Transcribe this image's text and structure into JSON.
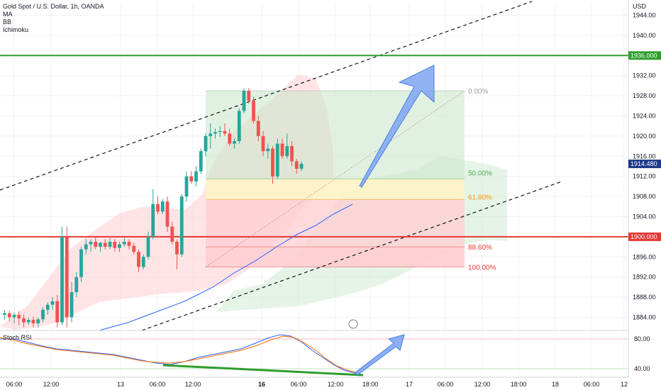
{
  "header": {
    "symbol": "Gold Spot / U.S. Dollar, 1h, OANDA",
    "indicators": [
      "MA",
      "BB",
      "Ichimoku"
    ],
    "currency": "USD"
  },
  "rsi_panel": {
    "label": "Stoch RSI",
    "levels": [
      "80.00",
      "40.00"
    ]
  },
  "time_axis": {
    "labels": [
      {
        "text": "06:00",
        "bold": false
      },
      {
        "text": "12:00",
        "bold": false
      },
      {
        "text": "13",
        "bold": false
      },
      {
        "text": "06:00",
        "bold": false
      },
      {
        "text": "12:00",
        "bold": false
      },
      {
        "text": "16",
        "bold": true
      },
      {
        "text": "06:00",
        "bold": false
      },
      {
        "text": "12:00",
        "bold": false
      },
      {
        "text": "18:00",
        "bold": false
      },
      {
        "text": "17",
        "bold": false
      },
      {
        "text": "06:00",
        "bold": false
      },
      {
        "text": "12:00",
        "bold": false
      },
      {
        "text": "18:00",
        "bold": false
      },
      {
        "text": "18",
        "bold": false
      },
      {
        "text": "06:00",
        "bold": false
      },
      {
        "text": "12",
        "bold": false
      }
    ]
  },
  "price_tags": [
    {
      "text": "1936.000",
      "color": "#2e9e2e",
      "price": 1936.0
    },
    {
      "text": "1914.480",
      "color": "#1e3a8a",
      "price": 1914.48
    },
    {
      "text": "1900.000",
      "color": "#e53935",
      "price": 1900.0
    }
  ],
  "fib_labels": [
    {
      "text": "0.00%",
      "color": "#9e9e9e"
    },
    {
      "text": "50.00%",
      "color": "#4caf50"
    },
    {
      "text": "61.80%",
      "color": "#ff9800"
    },
    {
      "text": "88.60%",
      "color": "#e53935"
    },
    {
      "text": "100.00%",
      "color": "#e53935"
    }
  ],
  "colors": {
    "up": "#26a69a",
    "down": "#ef5350",
    "grid": "#f0f3fa",
    "support": "#e53935",
    "resistance": "#2e9e2e",
    "ma": "#2962ff"
  },
  "chart_data": {
    "type": "candlestick",
    "title": "Gold Spot / U.S. Dollar, 1h, OANDA",
    "y_unit": "USD",
    "ylim": [
      1880,
      1948
    ],
    "yticks": [
      1884,
      1888,
      1892,
      1896,
      1900,
      1904,
      1908,
      1912,
      1916,
      1920,
      1924,
      1928,
      1932,
      1940,
      1944
    ],
    "horizontal_levels": [
      {
        "price": 1936.0,
        "color": "#2e9e2e"
      },
      {
        "price": 1900.0,
        "color": "#e53935"
      }
    ],
    "fib_retracement": {
      "high": 1929.0,
      "low": 1894.0,
      "levels": [
        {
          "ratio": 0.0,
          "price": 1929.0
        },
        {
          "ratio": 0.5,
          "price": 1911.5
        },
        {
          "ratio": 0.618,
          "price": 1907.4
        },
        {
          "ratio": 0.886,
          "price": 1898.0
        },
        {
          "ratio": 1.0,
          "price": 1894.0
        }
      ]
    },
    "candles": [
      {
        "o": 1884.5,
        "h": 1885.5,
        "l": 1883.5,
        "c": 1884.8
      },
      {
        "o": 1884.8,
        "h": 1885.3,
        "l": 1883.2,
        "c": 1884.0
      },
      {
        "o": 1884.0,
        "h": 1885.0,
        "l": 1882.8,
        "c": 1884.5
      },
      {
        "o": 1884.5,
        "h": 1885.2,
        "l": 1882.5,
        "c": 1883.8
      },
      {
        "o": 1883.8,
        "h": 1884.6,
        "l": 1882.0,
        "c": 1883.0
      },
      {
        "o": 1883.0,
        "h": 1884.0,
        "l": 1882.5,
        "c": 1883.5
      },
      {
        "o": 1883.5,
        "h": 1884.2,
        "l": 1882.0,
        "c": 1882.8
      },
      {
        "o": 1882.8,
        "h": 1884.0,
        "l": 1882.0,
        "c": 1883.6
      },
      {
        "o": 1883.6,
        "h": 1886.0,
        "l": 1883.0,
        "c": 1885.5
      },
      {
        "o": 1885.5,
        "h": 1887.0,
        "l": 1884.5,
        "c": 1886.5
      },
      {
        "o": 1886.5,
        "h": 1888.0,
        "l": 1885.5,
        "c": 1887.2
      },
      {
        "o": 1887.2,
        "h": 1888.5,
        "l": 1882.0,
        "c": 1883.0
      },
      {
        "o": 1883.0,
        "h": 1902.0,
        "l": 1882.5,
        "c": 1900.0
      },
      {
        "o": 1900.0,
        "h": 1902.0,
        "l": 1882.0,
        "c": 1884.0
      },
      {
        "o": 1884.0,
        "h": 1891.0,
        "l": 1883.0,
        "c": 1889.0
      },
      {
        "o": 1889.0,
        "h": 1893.0,
        "l": 1888.0,
        "c": 1892.0
      },
      {
        "o": 1892.0,
        "h": 1898.0,
        "l": 1891.0,
        "c": 1897.5
      },
      {
        "o": 1897.5,
        "h": 1899.5,
        "l": 1896.5,
        "c": 1898.5
      },
      {
        "o": 1898.5,
        "h": 1899.5,
        "l": 1897.0,
        "c": 1899.0
      },
      {
        "o": 1899.0,
        "h": 1900.0,
        "l": 1897.5,
        "c": 1898.0
      },
      {
        "o": 1898.0,
        "h": 1899.0,
        "l": 1897.0,
        "c": 1898.8
      },
      {
        "o": 1898.8,
        "h": 1899.5,
        "l": 1897.5,
        "c": 1898.0
      },
      {
        "o": 1898.0,
        "h": 1899.8,
        "l": 1897.5,
        "c": 1899.0
      },
      {
        "o": 1899.0,
        "h": 1899.5,
        "l": 1897.0,
        "c": 1897.8
      },
      {
        "o": 1897.8,
        "h": 1899.0,
        "l": 1897.0,
        "c": 1898.5
      },
      {
        "o": 1898.5,
        "h": 1899.8,
        "l": 1898.0,
        "c": 1899.0
      },
      {
        "o": 1899.0,
        "h": 1899.5,
        "l": 1897.5,
        "c": 1898.2
      },
      {
        "o": 1898.2,
        "h": 1898.8,
        "l": 1896.5,
        "c": 1897.0
      },
      {
        "o": 1897.0,
        "h": 1897.5,
        "l": 1893.0,
        "c": 1894.0
      },
      {
        "o": 1894.0,
        "h": 1896.5,
        "l": 1893.5,
        "c": 1896.0
      },
      {
        "o": 1896.0,
        "h": 1901.0,
        "l": 1895.5,
        "c": 1900.0
      },
      {
        "o": 1900.0,
        "h": 1909.5,
        "l": 1899.5,
        "c": 1906.5
      },
      {
        "o": 1906.5,
        "h": 1908.0,
        "l": 1904.5,
        "c": 1905.0
      },
      {
        "o": 1905.0,
        "h": 1907.5,
        "l": 1904.5,
        "c": 1907.0
      },
      {
        "o": 1907.0,
        "h": 1908.0,
        "l": 1901.0,
        "c": 1902.0
      },
      {
        "o": 1902.0,
        "h": 1903.0,
        "l": 1898.5,
        "c": 1899.0
      },
      {
        "o": 1899.0,
        "h": 1899.5,
        "l": 1893.5,
        "c": 1896.5
      },
      {
        "o": 1896.5,
        "h": 1908.5,
        "l": 1896.0,
        "c": 1908.0
      },
      {
        "o": 1908.0,
        "h": 1913.0,
        "l": 1907.0,
        "c": 1912.0
      },
      {
        "o": 1912.0,
        "h": 1913.0,
        "l": 1910.5,
        "c": 1911.0
      },
      {
        "o": 1911.0,
        "h": 1914.0,
        "l": 1910.0,
        "c": 1913.0
      },
      {
        "o": 1913.0,
        "h": 1917.5,
        "l": 1912.5,
        "c": 1917.0
      },
      {
        "o": 1917.0,
        "h": 1920.5,
        "l": 1916.0,
        "c": 1920.0
      },
      {
        "o": 1920.0,
        "h": 1922.5,
        "l": 1917.5,
        "c": 1920.5
      },
      {
        "o": 1920.5,
        "h": 1921.5,
        "l": 1919.5,
        "c": 1920.8
      },
      {
        "o": 1920.8,
        "h": 1922.0,
        "l": 1919.8,
        "c": 1921.0
      },
      {
        "o": 1921.0,
        "h": 1922.5,
        "l": 1920.0,
        "c": 1920.5
      },
      {
        "o": 1920.5,
        "h": 1921.5,
        "l": 1918.0,
        "c": 1918.5
      },
      {
        "o": 1918.5,
        "h": 1919.5,
        "l": 1917.5,
        "c": 1919.0
      },
      {
        "o": 1919.0,
        "h": 1925.5,
        "l": 1918.5,
        "c": 1925.0
      },
      {
        "o": 1925.0,
        "h": 1929.5,
        "l": 1924.5,
        "c": 1929.0
      },
      {
        "o": 1929.0,
        "h": 1929.5,
        "l": 1926.5,
        "c": 1927.0
      },
      {
        "o": 1927.0,
        "h": 1927.8,
        "l": 1922.5,
        "c": 1923.0
      },
      {
        "o": 1923.0,
        "h": 1924.0,
        "l": 1919.0,
        "c": 1920.0
      },
      {
        "o": 1920.0,
        "h": 1921.0,
        "l": 1916.0,
        "c": 1917.0
      },
      {
        "o": 1917.0,
        "h": 1918.5,
        "l": 1915.5,
        "c": 1917.5
      },
      {
        "o": 1917.5,
        "h": 1918.0,
        "l": 1910.5,
        "c": 1912.0
      },
      {
        "o": 1912.0,
        "h": 1919.5,
        "l": 1911.5,
        "c": 1918.5
      },
      {
        "o": 1918.5,
        "h": 1919.5,
        "l": 1915.5,
        "c": 1916.0
      },
      {
        "o": 1916.0,
        "h": 1920.5,
        "l": 1915.5,
        "c": 1918.0
      },
      {
        "o": 1918.0,
        "h": 1919.0,
        "l": 1914.0,
        "c": 1915.0
      },
      {
        "o": 1915.0,
        "h": 1915.5,
        "l": 1912.5,
        "c": 1913.5
      },
      {
        "o": 1913.5,
        "h": 1915.0,
        "l": 1913.0,
        "c": 1914.5
      }
    ]
  }
}
